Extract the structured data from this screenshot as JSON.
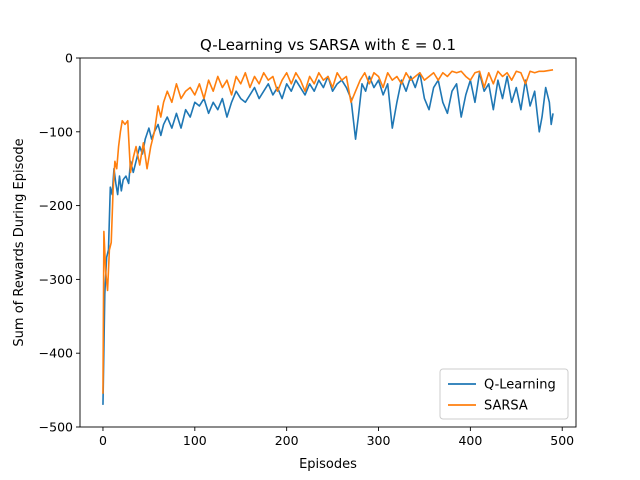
{
  "chart_data": {
    "type": "line",
    "title": "Q-Learning vs SARSA with Ɛ = 0.1",
    "xlabel": "Episodes",
    "ylabel": "Sum of Rewards During Episode",
    "xlim": [
      -25,
      515
    ],
    "ylim": [
      -500,
      0
    ],
    "xticks": [
      0,
      100,
      200,
      300,
      400,
      500
    ],
    "yticks": [
      -500,
      -400,
      -300,
      -200,
      -100,
      0
    ],
    "grid": false,
    "legend_position": "lower-right",
    "series": [
      {
        "name": "Q-Learning",
        "color": "#1f77b4",
        "points": [
          [
            0,
            -470
          ],
          [
            2,
            -320
          ],
          [
            4,
            -270
          ],
          [
            6,
            -260
          ],
          [
            8,
            -175
          ],
          [
            10,
            -185
          ],
          [
            12,
            -150
          ],
          [
            14,
            -170
          ],
          [
            16,
            -185
          ],
          [
            18,
            -160
          ],
          [
            20,
            -180
          ],
          [
            22,
            -165
          ],
          [
            25,
            -160
          ],
          [
            28,
            -170
          ],
          [
            30,
            -140
          ],
          [
            33,
            -155
          ],
          [
            36,
            -140
          ],
          [
            40,
            -120
          ],
          [
            43,
            -130
          ],
          [
            46,
            -110
          ],
          [
            50,
            -95
          ],
          [
            53,
            -110
          ],
          [
            56,
            -100
          ],
          [
            60,
            -90
          ],
          [
            63,
            -105
          ],
          [
            66,
            -90
          ],
          [
            70,
            -80
          ],
          [
            75,
            -95
          ],
          [
            80,
            -75
          ],
          [
            85,
            -95
          ],
          [
            90,
            -70
          ],
          [
            95,
            -80
          ],
          [
            100,
            -60
          ],
          [
            105,
            -65
          ],
          [
            110,
            -55
          ],
          [
            115,
            -75
          ],
          [
            120,
            -60
          ],
          [
            125,
            -70
          ],
          [
            130,
            -55
          ],
          [
            135,
            -80
          ],
          [
            140,
            -60
          ],
          [
            145,
            -45
          ],
          [
            150,
            -55
          ],
          [
            155,
            -60
          ],
          [
            160,
            -50
          ],
          [
            165,
            -40
          ],
          [
            170,
            -55
          ],
          [
            175,
            -45
          ],
          [
            180,
            -35
          ],
          [
            185,
            -50
          ],
          [
            190,
            -40
          ],
          [
            195,
            -55
          ],
          [
            200,
            -35
          ],
          [
            205,
            -45
          ],
          [
            210,
            -30
          ],
          [
            215,
            -40
          ],
          [
            220,
            -50
          ],
          [
            225,
            -35
          ],
          [
            230,
            -45
          ],
          [
            235,
            -30
          ],
          [
            240,
            -40
          ],
          [
            245,
            -25
          ],
          [
            250,
            -45
          ],
          [
            255,
            -35
          ],
          [
            260,
            -30
          ],
          [
            265,
            -40
          ],
          [
            270,
            -55
          ],
          [
            275,
            -110
          ],
          [
            278,
            -80
          ],
          [
            282,
            -35
          ],
          [
            286,
            -45
          ],
          [
            290,
            -25
          ],
          [
            295,
            -40
          ],
          [
            300,
            -30
          ],
          [
            305,
            -50
          ],
          [
            310,
            -35
          ],
          [
            315,
            -95
          ],
          [
            320,
            -60
          ],
          [
            325,
            -30
          ],
          [
            330,
            -45
          ],
          [
            335,
            -25
          ],
          [
            340,
            -40
          ],
          [
            345,
            -20
          ],
          [
            350,
            -55
          ],
          [
            355,
            -70
          ],
          [
            360,
            -40
          ],
          [
            365,
            -30
          ],
          [
            370,
            -60
          ],
          [
            375,
            -75
          ],
          [
            380,
            -45
          ],
          [
            385,
            -35
          ],
          [
            390,
            -80
          ],
          [
            395,
            -50
          ],
          [
            400,
            -30
          ],
          [
            405,
            -60
          ],
          [
            410,
            -20
          ],
          [
            415,
            -45
          ],
          [
            420,
            -35
          ],
          [
            425,
            -70
          ],
          [
            430,
            -30
          ],
          [
            435,
            -55
          ],
          [
            440,
            -25
          ],
          [
            445,
            -60
          ],
          [
            450,
            -40
          ],
          [
            455,
            -70
          ],
          [
            460,
            -30
          ],
          [
            465,
            -65
          ],
          [
            470,
            -45
          ],
          [
            475,
            -100
          ],
          [
            478,
            -80
          ],
          [
            482,
            -40
          ],
          [
            486,
            -60
          ],
          [
            488,
            -90
          ],
          [
            490,
            -75
          ]
        ]
      },
      {
        "name": "SARSA",
        "color": "#ff7f0e",
        "points": [
          [
            0,
            -455
          ],
          [
            1,
            -235
          ],
          [
            3,
            -290
          ],
          [
            5,
            -315
          ],
          [
            7,
            -260
          ],
          [
            9,
            -250
          ],
          [
            11,
            -180
          ],
          [
            13,
            -140
          ],
          [
            15,
            -150
          ],
          [
            17,
            -120
          ],
          [
            19,
            -100
          ],
          [
            21,
            -85
          ],
          [
            24,
            -90
          ],
          [
            27,
            -85
          ],
          [
            30,
            -155
          ],
          [
            33,
            -135
          ],
          [
            36,
            -120
          ],
          [
            40,
            -145
          ],
          [
            44,
            -115
          ],
          [
            48,
            -150
          ],
          [
            52,
            -120
          ],
          [
            56,
            -100
          ],
          [
            60,
            -65
          ],
          [
            63,
            -80
          ],
          [
            66,
            -60
          ],
          [
            70,
            -45
          ],
          [
            75,
            -60
          ],
          [
            80,
            -35
          ],
          [
            85,
            -55
          ],
          [
            90,
            -45
          ],
          [
            95,
            -40
          ],
          [
            100,
            -50
          ],
          [
            105,
            -35
          ],
          [
            110,
            -55
          ],
          [
            115,
            -30
          ],
          [
            120,
            -45
          ],
          [
            125,
            -25
          ],
          [
            130,
            -40
          ],
          [
            135,
            -30
          ],
          [
            140,
            -50
          ],
          [
            145,
            -25
          ],
          [
            150,
            -35
          ],
          [
            155,
            -20
          ],
          [
            160,
            -40
          ],
          [
            165,
            -25
          ],
          [
            170,
            -35
          ],
          [
            175,
            -20
          ],
          [
            180,
            -30
          ],
          [
            185,
            -25
          ],
          [
            190,
            -45
          ],
          [
            195,
            -30
          ],
          [
            200,
            -20
          ],
          [
            205,
            -35
          ],
          [
            210,
            -20
          ],
          [
            215,
            -30
          ],
          [
            220,
            -45
          ],
          [
            225,
            -25
          ],
          [
            230,
            -35
          ],
          [
            235,
            -20
          ],
          [
            240,
            -30
          ],
          [
            245,
            -25
          ],
          [
            250,
            -40
          ],
          [
            255,
            -20
          ],
          [
            260,
            -30
          ],
          [
            265,
            -25
          ],
          [
            270,
            -60
          ],
          [
            275,
            -45
          ],
          [
            280,
            -30
          ],
          [
            285,
            -20
          ],
          [
            290,
            -35
          ],
          [
            295,
            -20
          ],
          [
            300,
            -25
          ],
          [
            305,
            -40
          ],
          [
            310,
            -20
          ],
          [
            315,
            -30
          ],
          [
            320,
            -25
          ],
          [
            325,
            -35
          ],
          [
            330,
            -20
          ],
          [
            335,
            -30
          ],
          [
            340,
            -25
          ],
          [
            345,
            -20
          ],
          [
            350,
            -30
          ],
          [
            355,
            -25
          ],
          [
            360,
            -20
          ],
          [
            365,
            -30
          ],
          [
            370,
            -20
          ],
          [
            375,
            -25
          ],
          [
            380,
            -18
          ],
          [
            385,
            -20
          ],
          [
            390,
            -18
          ],
          [
            395,
            -25
          ],
          [
            400,
            -30
          ],
          [
            405,
            -20
          ],
          [
            410,
            -18
          ],
          [
            415,
            -40
          ],
          [
            420,
            -20
          ],
          [
            425,
            -35
          ],
          [
            430,
            -18
          ],
          [
            435,
            -25
          ],
          [
            440,
            -20
          ],
          [
            445,
            -30
          ],
          [
            450,
            -18
          ],
          [
            455,
            -20
          ],
          [
            460,
            -35
          ],
          [
            465,
            -18
          ],
          [
            470,
            -20
          ],
          [
            475,
            -18
          ],
          [
            480,
            -18
          ],
          [
            485,
            -17
          ],
          [
            490,
            -16
          ]
        ]
      }
    ]
  }
}
